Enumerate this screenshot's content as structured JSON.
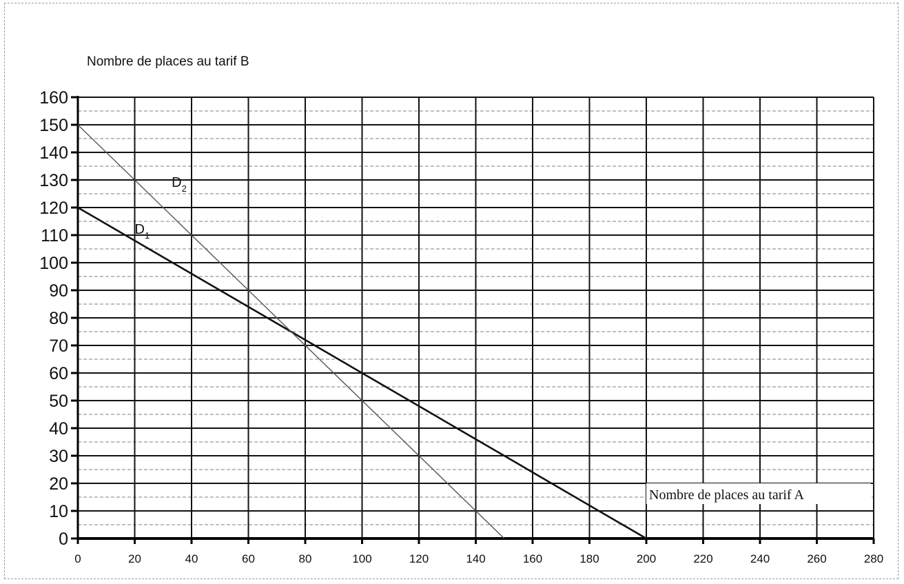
{
  "chart_data": {
    "type": "line",
    "title": "",
    "ylabel": "Nombre de places au tarif B",
    "xlabel": "Nombre de places au  tarif A",
    "xlim": [
      0,
      280
    ],
    "ylim": [
      0,
      160
    ],
    "x_ticks": [
      "0",
      "20",
      "40",
      "60",
      "80",
      "100",
      "120",
      "140",
      "160",
      "180",
      "200",
      "220",
      "240",
      "260",
      "280"
    ],
    "y_ticks": [
      "0",
      "10",
      "20",
      "30",
      "40",
      "50",
      "60",
      "70",
      "80",
      "90",
      "100",
      "110",
      "120",
      "130",
      "140",
      "150",
      "160"
    ],
    "grid": true,
    "series": [
      {
        "name": "D1",
        "label_main": "D",
        "label_sub": "1",
        "color": "#111111",
        "x": [
          0,
          200
        ],
        "y": [
          120,
          0
        ]
      },
      {
        "name": "D2",
        "label_main": "D",
        "label_sub": "2",
        "color": "#555555",
        "x": [
          0,
          150
        ],
        "y": [
          150,
          0
        ]
      }
    ]
  }
}
